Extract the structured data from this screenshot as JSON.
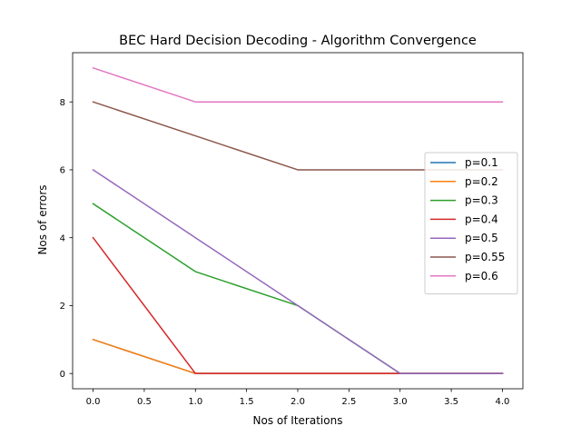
{
  "chart_data": {
    "type": "line",
    "title": "BEC Hard Decision Decoding - Algorithm Convergence",
    "xlabel": "Nos of Iterations",
    "ylabel": "Nos of errors",
    "xlim": [
      -0.2,
      4.2
    ],
    "ylim": [
      -0.45,
      9.45
    ],
    "xticks": [
      0.0,
      0.5,
      1.0,
      1.5,
      2.0,
      2.5,
      3.0,
      3.5,
      4.0
    ],
    "xtick_labels": [
      "0.0",
      "0.5",
      "1.0",
      "1.5",
      "2.0",
      "2.5",
      "3.0",
      "3.5",
      "4.0"
    ],
    "yticks": [
      0,
      2,
      4,
      6,
      8
    ],
    "ytick_labels": [
      "0",
      "2",
      "4",
      "6",
      "8"
    ],
    "grid": false,
    "legend_position": "center-right",
    "x": [
      0,
      1,
      2,
      3,
      4
    ],
    "series": [
      {
        "name": "p=0.1",
        "color": "#1f77b4",
        "values": [
          1,
          0,
          0,
          0,
          0
        ]
      },
      {
        "name": "p=0.2",
        "color": "#ff7f0e",
        "values": [
          1,
          0,
          0,
          0,
          0
        ]
      },
      {
        "name": "p=0.3",
        "color": "#2ca02c",
        "values": [
          5,
          3,
          2,
          0,
          0
        ]
      },
      {
        "name": "p=0.4",
        "color": "#d62728",
        "values": [
          4,
          0,
          0,
          0,
          0
        ]
      },
      {
        "name": "p=0.5",
        "color": "#9467bd",
        "values": [
          6,
          4,
          2,
          0,
          0
        ]
      },
      {
        "name": "p=0.55",
        "color": "#8c564b",
        "values": [
          8,
          7,
          6,
          6,
          6
        ]
      },
      {
        "name": "p=0.6",
        "color": "#e377c2",
        "values": [
          9,
          8,
          8,
          8,
          8
        ]
      }
    ]
  }
}
